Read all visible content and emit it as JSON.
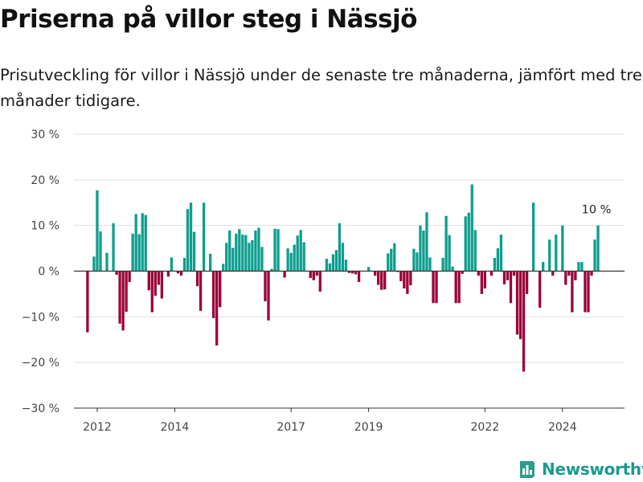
{
  "title": "Priserna på villor steg i Nässjö",
  "subtitle": "Prisutveckling för villor i Nässjö under de senaste tre månaderna, jämfört med tre månader tidigare.",
  "brand": {
    "name": "Newsworthy",
    "icon": "bar-chart-logo-icon",
    "color": "#2a9d8f"
  },
  "colors": {
    "positive": "#0d9e8e",
    "negative": "#9b0139",
    "grid": "#e0e0e0",
    "zero": "#333333",
    "tick_text": "#444444"
  },
  "chart_data": {
    "type": "bar",
    "title": "Priserna på villor steg i Nässjö",
    "xlabel": "",
    "ylabel": "",
    "ylim": [
      -30,
      30
    ],
    "y_ticks": [
      -30,
      -20,
      -10,
      0,
      10,
      20,
      30
    ],
    "y_tick_labels": [
      "−30 %",
      "−20 %",
      "−10 %",
      "0 %",
      "10 %",
      "20 %",
      "30 %"
    ],
    "x_range": [
      2011.4,
      2025.6
    ],
    "x_ticks": [
      2012,
      2014,
      2017,
      2019,
      2022,
      2024
    ],
    "x_tick_labels": [
      "2012",
      "2014",
      "2017",
      "2019",
      "2022",
      "2024"
    ],
    "grid": true,
    "legend": "none",
    "annotation": {
      "text": "10 %",
      "x": 2025,
      "y": 10
    },
    "x_start": "2011-10",
    "x_step": "1 month",
    "values": [
      -13.4,
      0,
      3.2,
      17.7,
      8.7,
      0,
      4.0,
      0,
      10.5,
      -0.8,
      -11.5,
      -13.0,
      -8.9,
      -2.4,
      8.2,
      12.5,
      8.1,
      12.7,
      12.3,
      -4.2,
      -9.0,
      -5.4,
      -3.0,
      -6.0,
      0,
      -1.2,
      3.0,
      0,
      -0.5,
      -1.0,
      2.9,
      13.6,
      15.0,
      8.6,
      -3.3,
      -8.7,
      15.0,
      0,
      3.8,
      -10.3,
      -16.3,
      -7.9,
      1.6,
      6.2,
      8.9,
      5.1,
      8.2,
      9.2,
      8.0,
      7.9,
      6.2,
      6.8,
      8.9,
      9.5,
      5.3,
      -6.6,
      -10.8,
      0.5,
      9.3,
      9.2,
      0,
      -1.4,
      5.0,
      4.0,
      5.8,
      7.8,
      9.0,
      6.3,
      0,
      -1.5,
      -2.0,
      -1.0,
      -4.5,
      0,
      2.7,
      1.7,
      3.7,
      4.6,
      10.5,
      6.2,
      2.5,
      -0.4,
      -0.5,
      -0.7,
      -2.4,
      0,
      0,
      0.9,
      0,
      -1.0,
      -3.0,
      -4.1,
      -4.0,
      3.9,
      4.9,
      6.1,
      -0.2,
      -2.2,
      -3.8,
      -5.0,
      -3.1,
      4.9,
      4.1,
      10.0,
      8.9,
      12.9,
      3.0,
      -7.0,
      -7.0,
      0,
      2.9,
      12.1,
      7.9,
      1.0,
      -7.0,
      -7.0,
      -0.6,
      12.0,
      12.8,
      19.0,
      9.0,
      -1.0,
      -5.0,
      -3.8,
      0,
      -1.0,
      2.9,
      5.0,
      8.0,
      -2.9,
      -2.0,
      -7.0,
      -1.0,
      -13.9,
      -14.9,
      -22.0,
      -5.0,
      0,
      15.0,
      0,
      -8.0,
      2.0,
      0,
      6.9,
      -1.0,
      8.0,
      0,
      10.0,
      -3.0,
      -1.0,
      -9.0,
      -2.0,
      2.0,
      2.0,
      -9.0,
      -9.0,
      -1.0,
      6.9,
      10.0
    ]
  }
}
